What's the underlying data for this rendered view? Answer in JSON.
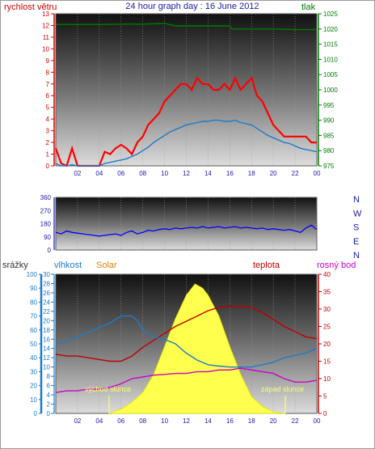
{
  "chart_data": [
    {
      "type": "line",
      "title": "24 hour graph day : 16 June 2012",
      "left_axis_title": "rychlost větru",
      "right_axis_title": "tlak",
      "left_ticks": [
        "0",
        "1",
        "2",
        "3",
        "4",
        "5",
        "6",
        "7",
        "8",
        "9",
        "10",
        "11",
        "12",
        "13"
      ],
      "right_ticks": [
        "975",
        "980",
        "985",
        "990",
        "995",
        "1000",
        "1005",
        "1010",
        "1015",
        "1020",
        "1025"
      ],
      "x_ticks": [
        "02",
        "04",
        "06",
        "08",
        "10",
        "12",
        "14",
        "16",
        "18",
        "20",
        "22",
        "00"
      ],
      "ylim_left": [
        0,
        13
      ],
      "ylim_right": [
        975,
        1025
      ],
      "xlim": [
        0,
        24
      ],
      "colors": {
        "gust": "#ff0000",
        "wind": "#1e7bc8",
        "pressure": "#007a00",
        "left_axis": "#d40000",
        "right_axis": "#007a00"
      },
      "series": [
        {
          "key": "gust",
          "x": [
            0,
            0.5,
            1,
            1.5,
            2,
            2.5,
            3,
            3.5,
            4,
            4.5,
            5,
            5.5,
            6,
            6.5,
            7,
            7.5,
            8,
            8.5,
            9,
            9.5,
            10,
            10.5,
            11,
            11.5,
            12,
            12.5,
            13,
            13.5,
            14,
            14.5,
            15,
            15.5,
            16,
            16.5,
            17,
            17.5,
            18,
            18.5,
            19,
            19.5,
            20,
            20.5,
            21,
            21.5,
            22,
            22.5,
            23,
            23.5,
            24
          ],
          "values": [
            1.5,
            0.2,
            0,
            1.5,
            0,
            0,
            0,
            0,
            0,
            1.2,
            1.0,
            1.5,
            1.8,
            1.5,
            1.0,
            2.0,
            2.5,
            3.5,
            4.0,
            4.5,
            5.5,
            6.0,
            6.5,
            7.0,
            7.0,
            6.5,
            7.5,
            7.0,
            7.0,
            6.5,
            6.5,
            7.0,
            6.5,
            7.5,
            6.5,
            7.0,
            7.5,
            6.0,
            5.5,
            4.5,
            3.5,
            3.0,
            2.5,
            2.5,
            2.5,
            2.5,
            2.5,
            2.0,
            2.0
          ]
        },
        {
          "key": "wind",
          "x": [
            0,
            0.5,
            1,
            1.5,
            2,
            2.5,
            3,
            3.5,
            4,
            4.5,
            5,
            5.5,
            6,
            6.5,
            7,
            7.5,
            8,
            8.5,
            9,
            9.5,
            10,
            10.5,
            11,
            11.5,
            12,
            12.5,
            13,
            13.5,
            14,
            14.5,
            15,
            15.5,
            16,
            16.5,
            17,
            17.5,
            18,
            18.5,
            19,
            19.5,
            20,
            20.5,
            21,
            21.5,
            22,
            22.5,
            23,
            23.5,
            24
          ],
          "values": [
            0.2,
            0,
            0,
            0.1,
            0,
            0,
            0,
            0,
            0,
            0.2,
            0.3,
            0.4,
            0.5,
            0.6,
            0.8,
            1.0,
            1.3,
            1.6,
            2.0,
            2.3,
            2.6,
            2.9,
            3.1,
            3.3,
            3.5,
            3.6,
            3.7,
            3.8,
            3.8,
            3.9,
            3.9,
            3.8,
            3.8,
            3.9,
            3.7,
            3.6,
            3.5,
            3.2,
            2.9,
            2.6,
            2.4,
            2.2,
            2.0,
            1.9,
            1.7,
            1.5,
            1.4,
            1.3,
            1.2
          ]
        },
        {
          "key": "pressure",
          "x": [
            0,
            2,
            4,
            6,
            8,
            10,
            11,
            12,
            14,
            16,
            16.2,
            18,
            20,
            22,
            24
          ],
          "values": [
            1021.5,
            1021.5,
            1021.5,
            1021.6,
            1021.6,
            1021.8,
            1021,
            1021,
            1021,
            1021,
            1020,
            1020,
            1020,
            1019.8,
            1019.8
          ]
        }
      ]
    },
    {
      "type": "scatter",
      "direction_labels": [
        "N",
        "W",
        "S",
        "E",
        "N"
      ],
      "ticks": [
        "360",
        "270",
        "180",
        "90",
        "0"
      ],
      "ylim": [
        0,
        360
      ],
      "xlim": [
        0,
        24
      ],
      "color": "#0000ff",
      "x": [
        0,
        0.5,
        1,
        1.5,
        2,
        2.5,
        3,
        3.5,
        4,
        4.5,
        5,
        5.5,
        6,
        6.5,
        7,
        7.5,
        8,
        8.5,
        9,
        9.5,
        10,
        10.5,
        11,
        11.5,
        12,
        12.5,
        13,
        13.5,
        14,
        14.5,
        15,
        15.5,
        16,
        16.5,
        17,
        17.5,
        18,
        18.5,
        19,
        19.5,
        20,
        20.5,
        21,
        21.5,
        22,
        22.5,
        23,
        23.5,
        24
      ],
      "values": [
        120,
        110,
        130,
        120,
        115,
        110,
        105,
        100,
        95,
        100,
        105,
        110,
        100,
        120,
        130,
        110,
        120,
        135,
        130,
        140,
        145,
        140,
        150,
        145,
        150,
        155,
        150,
        160,
        150,
        155,
        160,
        150,
        155,
        160,
        150,
        155,
        150,
        145,
        150,
        140,
        145,
        140,
        135,
        140,
        130,
        120,
        150,
        170,
        140
      ]
    },
    {
      "type": "line",
      "titles": {
        "rain": "srážky",
        "humidity": "vlhkost",
        "solar": "Solar",
        "temperature": "teplota",
        "dewpoint": "rosný bod"
      },
      "rain_ticks": [
        "0",
        "10",
        "20",
        "30",
        "40",
        "50",
        "60",
        "70",
        "80",
        "90",
        "100"
      ],
      "humidity_ticks": [
        "0",
        "2",
        "4",
        "6",
        "8",
        "10",
        "12",
        "14",
        "16",
        "18",
        "20",
        "22",
        "24",
        "26",
        "28",
        "30"
      ],
      "temp_ticks": [
        "0",
        "5",
        "10",
        "15",
        "20",
        "25",
        "30",
        "35",
        "40"
      ],
      "x_ticks": [
        "02",
        "04",
        "06",
        "08",
        "10",
        "12",
        "14",
        "16",
        "18",
        "20",
        "22",
        "00"
      ],
      "annotations": {
        "sunrise": "východ slunce",
        "sunset": "západ slunce"
      },
      "sunrise_x": 4.9,
      "sunset_x": 21.1,
      "ylim_rain": [
        0,
        100
      ],
      "ylim_humidity": [
        0,
        30
      ],
      "ylim_temp": [
        0,
        40
      ],
      "xlim": [
        0,
        24
      ],
      "colors": {
        "rain": "#1e7bc8",
        "humidity": "#1e7bc8",
        "solar": "#d4880a",
        "temperature": "#c00000",
        "dewpoint": "#cc00cc",
        "solar_fill": "#ffff4d"
      },
      "series": [
        {
          "key": "temperature",
          "x": [
            0,
            1,
            2,
            3,
            4,
            5,
            6,
            7,
            8,
            9,
            10,
            11,
            12,
            13,
            14,
            15,
            16,
            17,
            18,
            19,
            20,
            21,
            22,
            23,
            24
          ],
          "values": [
            17,
            16.5,
            16.5,
            16,
            15.5,
            15,
            15,
            16.5,
            19,
            21,
            23,
            25,
            26.5,
            28,
            29.5,
            30.5,
            30.8,
            30.8,
            30.5,
            29,
            27,
            25,
            23.5,
            22,
            21.5
          ]
        },
        {
          "key": "dewpoint",
          "x": [
            0,
            1,
            2,
            3,
            4,
            5,
            6,
            7,
            8,
            9,
            10,
            11,
            12,
            13,
            14,
            15,
            16,
            17,
            18,
            19,
            20,
            21,
            22,
            23,
            24
          ],
          "values": [
            6,
            6.5,
            6.5,
            7,
            7,
            7.5,
            8.5,
            10,
            10.5,
            11,
            11.2,
            11.5,
            11.5,
            12,
            12,
            12.5,
            12.5,
            13,
            12.5,
            12,
            11.5,
            10,
            9,
            9,
            9.5
          ]
        },
        {
          "key": "humidity",
          "x": [
            0,
            1,
            2,
            3,
            4,
            5,
            6,
            7,
            7.5,
            8,
            9,
            10,
            11,
            12,
            13,
            14,
            15,
            16,
            17,
            18,
            19,
            20,
            21,
            22,
            23,
            24
          ],
          "values": [
            15,
            15.5,
            16.5,
            17.5,
            18.5,
            19.5,
            21,
            21,
            20,
            18,
            16.5,
            16,
            15,
            13,
            11.5,
            10.5,
            10.2,
            10,
            10,
            10,
            10.5,
            11,
            12,
            12.5,
            13,
            14
          ]
        },
        {
          "key": "solar",
          "x": [
            4.9,
            6,
            7,
            8,
            9,
            10,
            11,
            12,
            12.8,
            13.5,
            14,
            15,
            16,
            17,
            18,
            19,
            20,
            21.1
          ],
          "values": [
            0,
            3,
            8,
            15,
            28,
            48,
            68,
            85,
            93,
            90,
            85,
            70,
            48,
            28,
            12,
            5,
            1,
            0
          ]
        }
      ]
    }
  ]
}
